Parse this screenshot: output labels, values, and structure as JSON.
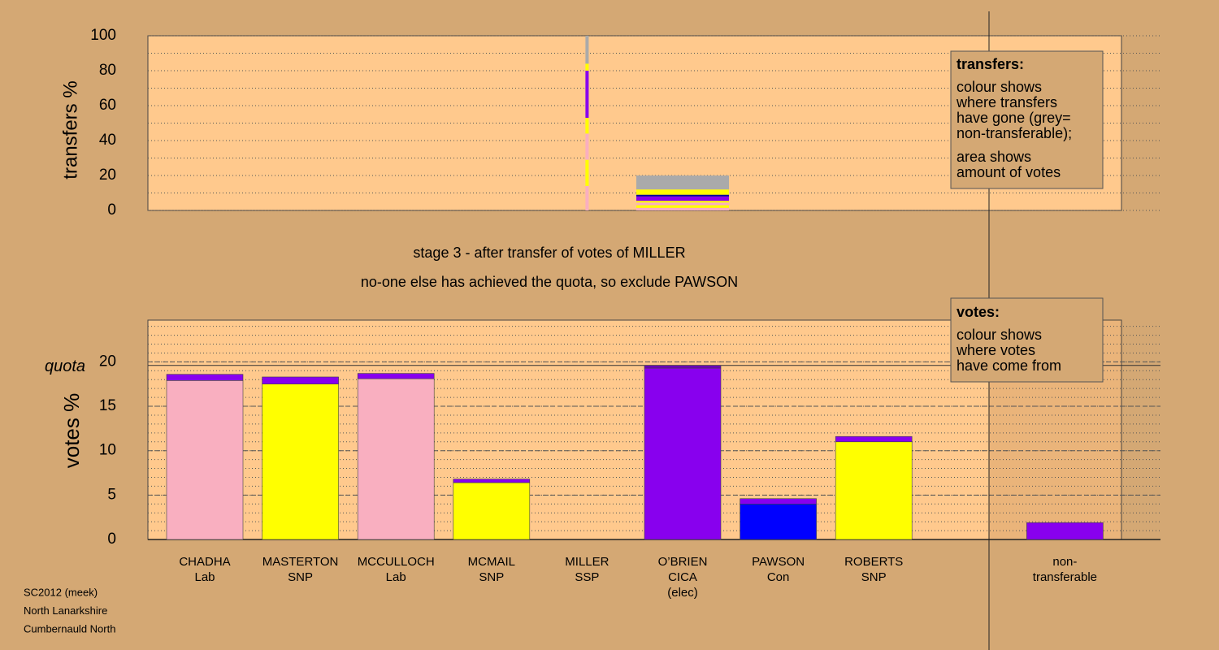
{
  "chart_data": [
    {
      "type": "transfer",
      "ylabel": "transfers %",
      "ylim": [
        0,
        100
      ],
      "yticks": [
        0,
        20,
        40,
        60,
        80,
        100
      ],
      "minor_grid_step": 10,
      "transfer_bar": [
        {
          "color": "#f9afc0",
          "value": 14
        },
        {
          "color": "#ffff00",
          "value": 15
        },
        {
          "color": "#f9afc0",
          "value": 15
        },
        {
          "color": "#ffff00",
          "value": 9
        },
        {
          "color": "#8800ee",
          "value": 27
        },
        {
          "color": "#ffff00",
          "value": 4
        },
        {
          "color": "#aaaaaa",
          "value": 16
        }
      ],
      "amount_block": [
        {
          "color": "#f9afc0",
          "value": 1.5
        },
        {
          "color": "#ffff00",
          "value": 1.5
        },
        {
          "color": "#f9afc0",
          "value": 1.5
        },
        {
          "color": "#ffff00",
          "value": 1
        },
        {
          "color": "#8800ee",
          "value": 2.5
        },
        {
          "color": "#000099",
          "value": 1
        },
        {
          "color": "#ffff00",
          "value": 3
        },
        {
          "color": "#aaaaaa",
          "value": 8
        }
      ]
    },
    {
      "type": "bar",
      "ylabel": "votes %",
      "ylim": [
        0,
        24.7
      ],
      "yticks": [
        0,
        5,
        10,
        15,
        20
      ],
      "minor_grid_step": 1,
      "quota": {
        "label": "quota",
        "value": 19.6
      },
      "categories": [
        [
          "CHADHA",
          "Lab"
        ],
        [
          "MASTERTON",
          "SNP"
        ],
        [
          "MCCULLOCH",
          "Lab"
        ],
        [
          "MCMAIL",
          "SNP"
        ],
        [
          "MILLER",
          "SSP"
        ],
        [
          "O’BRIEN",
          "CICA",
          "(elec)"
        ],
        [
          "PAWSON",
          "Con"
        ],
        [
          "ROBERTS",
          "SNP"
        ],
        null,
        [
          "non-",
          "transferable"
        ]
      ],
      "values": [
        [
          17.9,
          0.7
        ],
        [
          17.5,
          0.8
        ],
        [
          18.1,
          0.6
        ],
        [
          6.4,
          0.4
        ],
        [
          0
        ],
        [
          19.3,
          0.3
        ],
        [
          4.0,
          0.6
        ],
        [
          11.0,
          0.6
        ],
        null,
        [
          1.9
        ]
      ],
      "colors": [
        [
          "#f9afc0",
          "#8800ee"
        ],
        [
          "#ffff00",
          "#8800ee"
        ],
        [
          "#f9afc0",
          "#8800ee"
        ],
        [
          "#ffff00",
          "#8800ee"
        ],
        [
          "#8800ee"
        ],
        [
          "#8800ee",
          "#6a00bb"
        ],
        [
          "#0000ff",
          "#8800ee"
        ],
        [
          "#ffff00",
          "#8800ee"
        ],
        null,
        [
          "#8800ee"
        ]
      ]
    }
  ],
  "notes": [
    "stage 3 - after transfer of votes of MILLER",
    "no-one else has achieved the quota, so exclude PAWSON"
  ],
  "legends": [
    {
      "title": "transfers:",
      "paragraphs": [
        [
          "colour shows",
          "where transfers",
          "have gone (grey=",
          "non-transferable);"
        ],
        [
          "area shows",
          "amount of votes"
        ]
      ]
    },
    {
      "title": "votes:",
      "paragraphs": [
        [
          "colour shows",
          "where votes",
          "have come from"
        ]
      ]
    }
  ],
  "footer": [
    "SC2012 (meek)",
    "North Lanarkshire",
    "Cumbernauld North"
  ]
}
